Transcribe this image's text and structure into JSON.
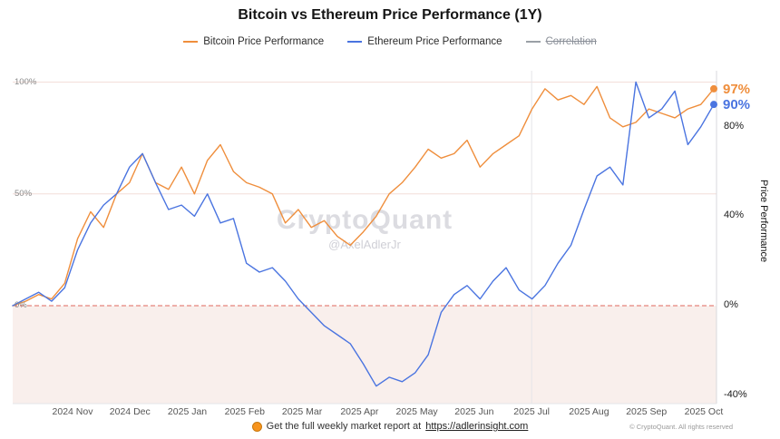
{
  "title": "Bitcoin vs Ethereum Price Performance (1Y)",
  "legend": [
    {
      "label": "Bitcoin Price Performance",
      "color": "#EF8E3C",
      "hidden": false
    },
    {
      "label": "Ethereum Price Performance",
      "color": "#4A74E0",
      "hidden": false
    },
    {
      "label": "Correlation",
      "color": "#9aa0a6",
      "hidden": true
    }
  ],
  "watermark": {
    "brand": "CryptoQuant",
    "handle": "@AxelAdlerJr"
  },
  "footer": {
    "report_text": "Get the full weekly market report at",
    "report_link": "https://adlerinsight.com",
    "copyright": "© CryptoQuant. All rights reserved"
  },
  "chart_data": {
    "type": "line",
    "title": "Bitcoin vs Ethereum Price Performance (1Y)",
    "x_range": [
      "2024 Oct",
      "2025 Oct"
    ],
    "x_ticks": [
      "2024 Nov",
      "2024 Dec",
      "2025 Jan",
      "2025 Feb",
      "2025 Mar",
      "2025 Apr",
      "2025 May",
      "2025 Jun",
      "2025 Jul",
      "2025 Aug",
      "2025 Sep",
      "2025 Oct"
    ],
    "left_ticks": [
      {
        "label": "100%",
        "value": 100
      },
      {
        "label": "50%",
        "value": 50
      },
      {
        "label": "0%",
        "value": 0
      }
    ],
    "right_ticks": [
      {
        "label": "80%",
        "value": 80
      },
      {
        "label": "40%",
        "value": 40
      },
      {
        "label": "0%",
        "value": 0
      },
      {
        "label": "-40%",
        "value": -40
      }
    ],
    "right_axis_label": "Price Performance",
    "ylim": [
      -45,
      105
    ],
    "unit": "%",
    "style": {
      "below_zero_fill": "#f9efec",
      "zero_line_color": "#e0675c",
      "grid_color": "#f3ded9",
      "frame_color": "#d8d8dc"
    },
    "series": [
      {
        "name": "Bitcoin Price Performance",
        "color": "#EF8E3C",
        "hidden": false,
        "end_label": "97%",
        "values": [
          0,
          2,
          5,
          3,
          10,
          30,
          42,
          35,
          50,
          55,
          68,
          55,
          52,
          62,
          50,
          65,
          72,
          60,
          55,
          53,
          50,
          37,
          43,
          35,
          38,
          31,
          27,
          33,
          40,
          50,
          55,
          62,
          70,
          66,
          68,
          74,
          62,
          68,
          72,
          76,
          88,
          97,
          92,
          94,
          90,
          98,
          84,
          80,
          82,
          88,
          86,
          84,
          88,
          90,
          97
        ]
      },
      {
        "name": "Ethereum Price Performance",
        "color": "#4A74E0",
        "hidden": false,
        "end_label": "90%",
        "values": [
          0,
          3,
          6,
          2,
          8,
          25,
          37,
          45,
          50,
          62,
          68,
          55,
          43,
          45,
          40,
          50,
          37,
          39,
          19,
          15,
          17,
          11,
          3,
          -3,
          -9,
          -13,
          -17,
          -26,
          -36,
          -32,
          -34,
          -30,
          -22,
          -3,
          5,
          9,
          3,
          11,
          17,
          7,
          3,
          9,
          19,
          27,
          43,
          58,
          62,
          54,
          100,
          84,
          88,
          96,
          72,
          80,
          90
        ]
      },
      {
        "name": "Correlation",
        "color": "#9aa0a6",
        "hidden": true,
        "values": []
      }
    ]
  }
}
